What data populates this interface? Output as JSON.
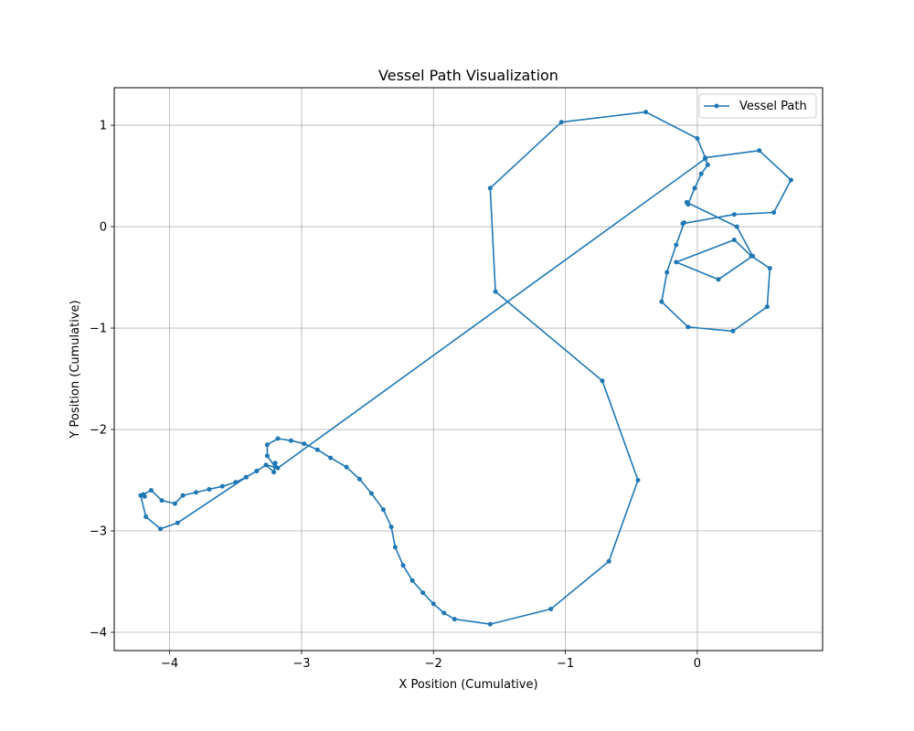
{
  "chart_data": {
    "type": "line",
    "title": "Vessel Path Visualization",
    "xlabel": "X Position (Cumulative)",
    "ylabel": "Y Position (Cumulative)",
    "xlim": [
      -4.42,
      0.95
    ],
    "ylim": [
      -4.18,
      1.37
    ],
    "xticks": [
      -4,
      -3,
      -2,
      -1,
      0
    ],
    "yticks": [
      -4,
      -3,
      -2,
      -1,
      0,
      1
    ],
    "xtick_labels": [
      "−4",
      "−3",
      "−2",
      "−1",
      "0"
    ],
    "ytick_labels": [
      "−4",
      "−3",
      "−2",
      "−1",
      "0",
      "1"
    ],
    "grid": true,
    "legend_position": "top-right",
    "series": [
      {
        "name": "Vessel Path",
        "color": "#1f77b4",
        "marker": "circle",
        "points": [
          [
            -4.2,
            -2.64
          ],
          [
            -4.14,
            -2.6
          ],
          [
            -4.06,
            -2.7
          ],
          [
            -3.96,
            -2.73
          ],
          [
            -3.9,
            -2.65
          ],
          [
            -3.8,
            -2.62
          ],
          [
            -3.7,
            -2.59
          ],
          [
            -3.6,
            -2.56
          ],
          [
            -3.5,
            -2.52
          ],
          [
            -3.42,
            -2.47
          ],
          [
            -3.34,
            -2.41
          ],
          [
            -3.27,
            -2.35
          ],
          [
            -3.2,
            -2.37
          ],
          [
            -3.26,
            -2.26
          ],
          [
            -3.26,
            -2.15
          ],
          [
            -3.18,
            -2.09
          ],
          [
            -3.08,
            -2.11
          ],
          [
            -2.98,
            -2.14
          ],
          [
            -2.88,
            -2.2
          ],
          [
            -2.78,
            -2.28
          ],
          [
            -2.66,
            -2.37
          ],
          [
            -2.56,
            -2.49
          ],
          [
            -2.47,
            -2.63
          ],
          [
            -2.38,
            -2.79
          ],
          [
            -2.32,
            -2.96
          ],
          [
            -2.29,
            -3.16
          ],
          [
            -2.23,
            -3.34
          ],
          [
            -2.16,
            -3.49
          ],
          [
            -2.08,
            -3.61
          ],
          [
            -2.0,
            -3.72
          ],
          [
            -1.92,
            -3.81
          ],
          [
            -1.84,
            -3.87
          ],
          [
            -1.57,
            -3.92
          ],
          [
            -1.11,
            -3.77
          ],
          [
            -0.67,
            -3.3
          ],
          [
            -0.45,
            -2.5
          ],
          [
            -0.72,
            -1.52
          ],
          [
            -1.53,
            -0.64
          ],
          [
            -1.57,
            0.38
          ],
          [
            -1.03,
            1.03
          ],
          [
            -0.39,
            1.13
          ],
          [
            0.0,
            0.87
          ],
          [
            0.06,
            0.68
          ],
          [
            0.47,
            0.75
          ],
          [
            0.71,
            0.46
          ],
          [
            0.58,
            0.14
          ],
          [
            0.28,
            0.12
          ],
          [
            -0.11,
            0.03
          ],
          [
            -0.1,
            0.04
          ],
          [
            -0.16,
            -0.18
          ],
          [
            -0.23,
            -0.45
          ],
          [
            -0.27,
            -0.74
          ],
          [
            -0.07,
            -0.99
          ],
          [
            0.27,
            -1.03
          ],
          [
            0.53,
            -0.79
          ],
          [
            0.55,
            -0.41
          ],
          [
            0.41,
            -0.29
          ],
          [
            0.28,
            -0.13
          ],
          [
            -0.16,
            -0.35
          ],
          [
            0.16,
            -0.52
          ],
          [
            0.42,
            -0.29
          ],
          [
            0.3,
            0.0
          ],
          [
            -0.08,
            0.24
          ],
          [
            -0.07,
            0.22
          ],
          [
            -0.02,
            0.38
          ],
          [
            0.03,
            0.52
          ],
          [
            0.08,
            0.61
          ],
          [
            0.06,
            0.67
          ],
          [
            -3.18,
            -2.38
          ],
          [
            -3.2,
            -2.33
          ],
          [
            -3.21,
            -2.42
          ],
          [
            -3.27,
            -2.35
          ],
          [
            -3.34,
            -2.41
          ],
          [
            -3.42,
            -2.47
          ],
          [
            -3.94,
            -2.92
          ],
          [
            -4.07,
            -2.98
          ],
          [
            -4.18,
            -2.86
          ],
          [
            -4.22,
            -2.65
          ],
          [
            -4.19,
            -2.66
          ]
        ]
      }
    ]
  }
}
